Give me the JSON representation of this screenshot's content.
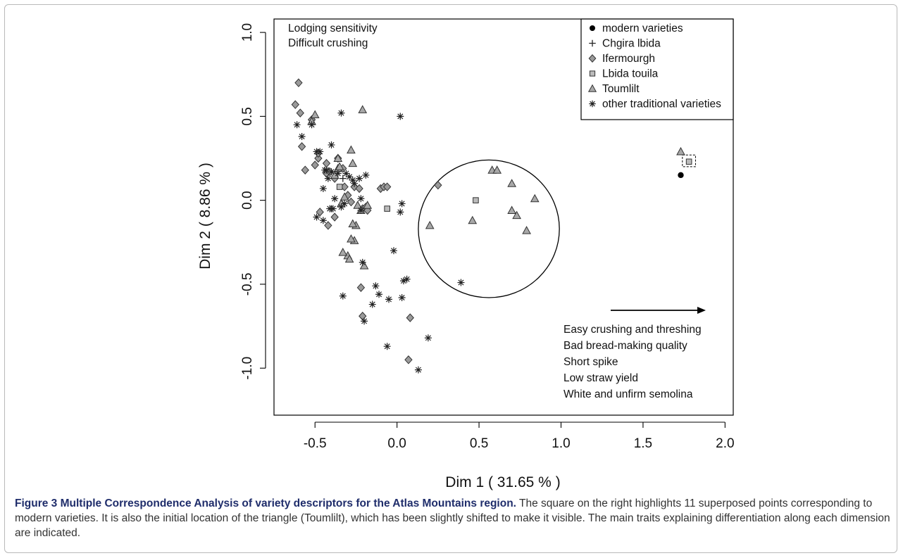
{
  "chart_data": {
    "type": "scatter",
    "xlabel": "Dim 1  ( 31.65 % )",
    "ylabel": "Dim 2  ( 8.86 % )",
    "xlim": [
      -0.75,
      2.05
    ],
    "ylim": [
      -1.28,
      1.08
    ],
    "xticks": [
      -0.5,
      0.0,
      0.5,
      1.0,
      1.5,
      2.0
    ],
    "xtick_labels": [
      "-0.5",
      "0.0",
      "0.5",
      "1.0",
      "1.5",
      "2.0"
    ],
    "yticks": [
      -1.0,
      -0.5,
      0.0,
      0.5,
      1.0
    ],
    "ytick_labels": [
      "-1.0",
      "-0.5",
      "0.0",
      "0.5",
      "1.0"
    ],
    "legend_position": "top-right",
    "legend": [
      {
        "name": "modern varieties",
        "marker": "dot"
      },
      {
        "name": "Chgira lbida",
        "marker": "plus"
      },
      {
        "name": "Ifermourgh",
        "marker": "diamond"
      },
      {
        "name": "Lbida touila",
        "marker": "square"
      },
      {
        "name": "Toumlilt",
        "marker": "triangle"
      },
      {
        "name": "other traditional varieties",
        "marker": "star"
      }
    ],
    "series": [
      {
        "name": "modern varieties",
        "marker": "dot",
        "x": [
          1.78,
          1.73
        ],
        "y": [
          0.23,
          0.15
        ]
      },
      {
        "name": "Chgira lbida",
        "marker": "plus",
        "x": [
          -0.33,
          -0.26,
          -0.4
        ],
        "y": [
          0.13,
          0.08,
          -0.05
        ]
      },
      {
        "name": "Ifermourgh",
        "marker": "diamond",
        "x": [
          -0.6,
          -0.62,
          -0.59,
          -0.58,
          -0.52,
          -0.48,
          -0.43,
          -0.56,
          -0.5,
          -0.48,
          -0.43,
          -0.41,
          -0.38,
          -0.36,
          -0.33,
          -0.32,
          -0.3,
          -0.26,
          -0.23,
          -0.21,
          -0.19,
          -0.1,
          -0.08,
          -0.06,
          0.08,
          0.07,
          -0.22,
          -0.21,
          -0.18,
          -0.28,
          0.25,
          -0.42,
          -0.47,
          -0.38
        ],
        "y": [
          0.7,
          0.57,
          0.52,
          0.32,
          0.48,
          0.25,
          0.16,
          0.18,
          0.21,
          0.28,
          0.22,
          0.17,
          0.13,
          0.25,
          0.19,
          0.08,
          0.03,
          0.08,
          0.07,
          -0.05,
          -0.04,
          0.07,
          0.08,
          0.08,
          -0.7,
          -0.95,
          -0.52,
          -0.69,
          -0.06,
          -0.01,
          0.09,
          -0.15,
          -0.07,
          -0.1
        ]
      },
      {
        "name": "Lbida touila",
        "marker": "square",
        "x": [
          -0.35,
          -0.06,
          0.48,
          1.78
        ],
        "y": [
          0.08,
          -0.05,
          0.0,
          0.23
        ]
      },
      {
        "name": "Toumlilt",
        "marker": "triangle",
        "x": [
          -0.5,
          -0.52,
          -0.36,
          -0.32,
          -0.28,
          -0.27,
          -0.21,
          -0.36,
          -0.38,
          -0.25,
          -0.26,
          -0.24,
          -0.18,
          -0.3,
          -0.29,
          -0.33,
          -0.28,
          -0.27,
          -0.22,
          -0.2,
          0.2,
          0.46,
          0.58,
          0.61,
          0.7,
          0.73,
          0.7,
          0.79,
          0.84,
          1.73,
          -0.34,
          -0.35
        ],
        "y": [
          0.51,
          0.47,
          0.25,
          0.02,
          0.3,
          0.22,
          0.54,
          0.19,
          0.15,
          -0.15,
          -0.24,
          -0.03,
          -0.03,
          -0.33,
          -0.35,
          -0.31,
          -0.23,
          -0.14,
          -0.06,
          -0.39,
          -0.15,
          -0.12,
          0.18,
          0.18,
          0.1,
          -0.09,
          -0.06,
          -0.18,
          0.01,
          0.29,
          -0.02,
          0.2
        ]
      },
      {
        "name": "other traditional varieties",
        "marker": "star",
        "x": [
          -0.34,
          0.02,
          -0.61,
          -0.58,
          -0.52,
          -0.47,
          -0.49,
          -0.43,
          -0.42,
          -0.4,
          -0.36,
          -0.31,
          -0.29,
          -0.27,
          -0.26,
          -0.23,
          -0.22,
          -0.19,
          -0.22,
          -0.34,
          -0.45,
          -0.49,
          -0.39,
          -0.32,
          -0.21,
          -0.02,
          0.03,
          0.02,
          0.04,
          0.06,
          0.03,
          -0.13,
          -0.11,
          -0.15,
          -0.2,
          -0.33,
          -0.05,
          -0.06,
          0.19,
          0.13,
          0.39,
          -0.45,
          -0.41,
          -0.38,
          -0.44,
          -0.4
        ],
        "y": [
          0.52,
          0.5,
          0.45,
          0.38,
          0.45,
          0.29,
          0.29,
          0.18,
          0.13,
          0.33,
          0.16,
          0.16,
          0.14,
          0.12,
          0.1,
          0.13,
          0.01,
          0.15,
          -0.06,
          -0.04,
          0.07,
          -0.1,
          -0.05,
          -0.02,
          -0.37,
          -0.3,
          -0.02,
          -0.07,
          -0.48,
          -0.47,
          -0.58,
          -0.51,
          -0.56,
          -0.62,
          -0.72,
          -0.57,
          -0.59,
          -0.87,
          -0.82,
          -1.01,
          -0.49,
          -0.12,
          -0.05,
          0.01,
          0.18,
          0.17
        ]
      }
    ],
    "annotations": {
      "top_left_lines": [
        "Lodging sensitivity",
        "Difficult crushing"
      ],
      "bottom_right_lines": [
        "Easy crushing and threshing",
        "Bad bread-making quality",
        "Short spike",
        "Low straw yield",
        "White and unfirm semolina"
      ]
    },
    "highlight_ellipse": {
      "cx": 0.56,
      "cy": -0.17,
      "rx": 0.43,
      "ry": 0.41
    },
    "highlight_box": {
      "x0": 1.74,
      "x1": 1.82,
      "y0": 0.2,
      "y1": 0.27
    }
  },
  "caption": {
    "label": "Figure 3 Multiple Correspondence Analysis of variety descriptors for the Atlas Mountains region.",
    "text": " The square on the right highlights 11 superposed points corresponding to modern varieties. It is also the initial location of the triangle (Toumlilt), which has been slightly shifted to make it visible. The main traits explaining differentiation along each dimension are indicated."
  }
}
